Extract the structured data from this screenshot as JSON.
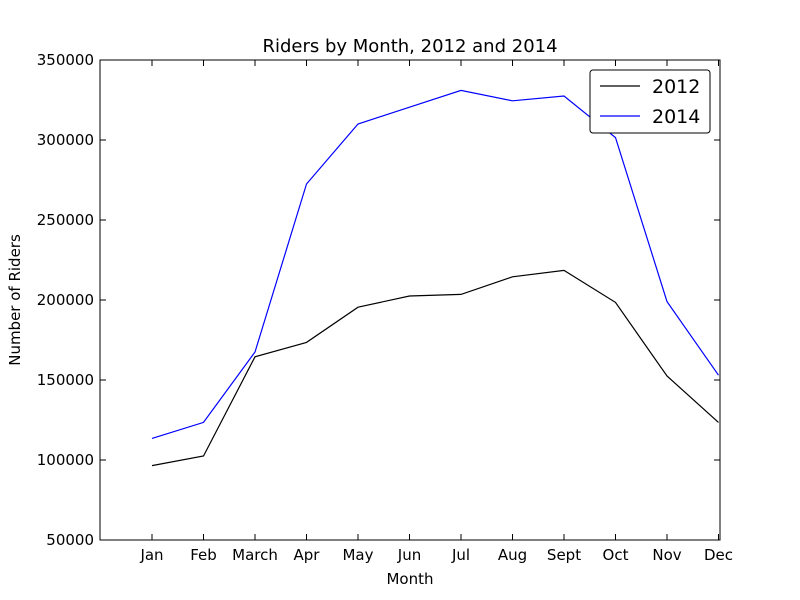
{
  "chart_data": {
    "type": "line",
    "title": "Riders by Month, 2012 and 2014",
    "xlabel": "Month",
    "ylabel": "Number of Riders",
    "categories": [
      "Jan",
      "Feb",
      "March",
      "Apr",
      "May",
      "Jun",
      "Jul",
      "Aug",
      "Sept",
      "Oct",
      "Nov",
      "Dec"
    ],
    "ylim": [
      50000,
      350000
    ],
    "yticks": [
      50000,
      100000,
      150000,
      200000,
      250000,
      300000,
      350000
    ],
    "ytick_labels": [
      "50000",
      "100000",
      "150000",
      "200000",
      "250000",
      "300000",
      "350000"
    ],
    "grid": false,
    "legend_position": "top-right",
    "series": [
      {
        "name": "2012",
        "color": "#000000",
        "values": [
          96500,
          102500,
          164500,
          173500,
          195500,
          202500,
          203500,
          214500,
          218500,
          198500,
          152500,
          123500
        ]
      },
      {
        "name": "2014",
        "color": "#0000ff",
        "values": [
          113500,
          123500,
          167500,
          272500,
          310000,
          320500,
          331000,
          324500,
          327500,
          301500,
          199000,
          153000
        ]
      }
    ]
  }
}
